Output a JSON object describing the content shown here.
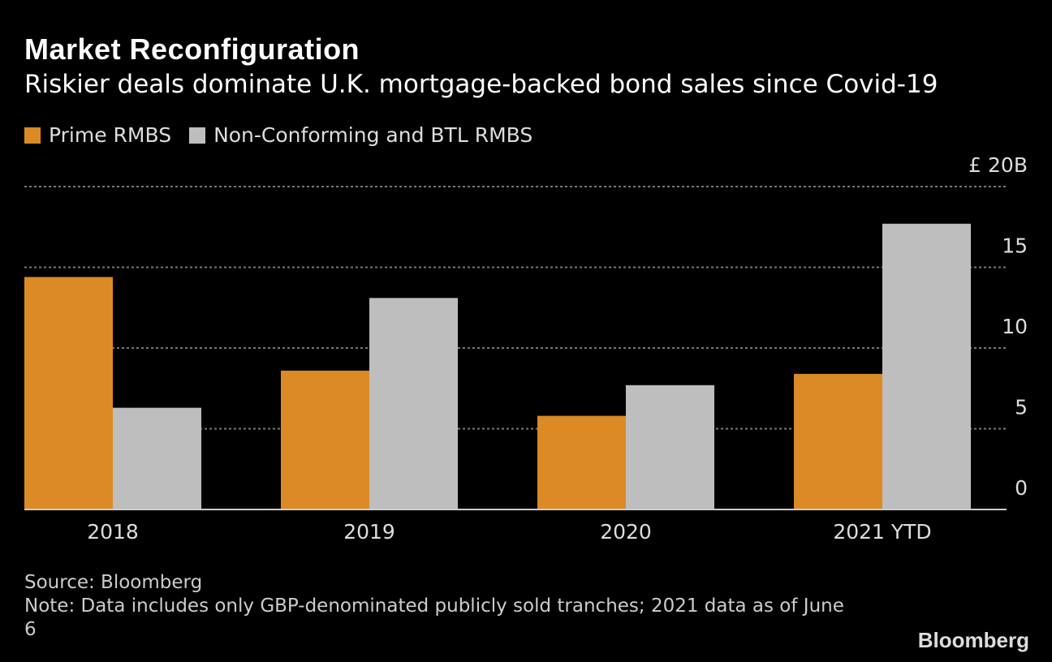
{
  "title": "Market Reconfiguration",
  "subtitle": "Riskier deals dominate U.K. mortgage-backed bond sales since Covid-19",
  "source": "Source: Bloomberg",
  "note": "Note: Data includes only GBP-denominated publicly sold tranches; 2021 data as of June 6",
  "logo": "Bloomberg",
  "chart_data": {
    "type": "bar",
    "categories": [
      "2018",
      "2019",
      "2020",
      "2021 YTD"
    ],
    "series": [
      {
        "name": "Prime RMBS",
        "color": "#DB8A25",
        "values": [
          14.4,
          8.6,
          5.8,
          8.4
        ]
      },
      {
        "name": "Non-Conforming and BTL RMBS",
        "color": "#BEBEBE",
        "values": [
          6.3,
          13.1,
          7.7,
          17.7
        ]
      }
    ],
    "ylim": [
      0,
      20
    ],
    "yticks": [
      0,
      5,
      10,
      15,
      20
    ],
    "ytick_labels": [
      "0",
      "5",
      "10",
      "15",
      "£ 20B"
    ],
    "y_axis_position": "right",
    "grid": true,
    "legend": "top-left"
  }
}
